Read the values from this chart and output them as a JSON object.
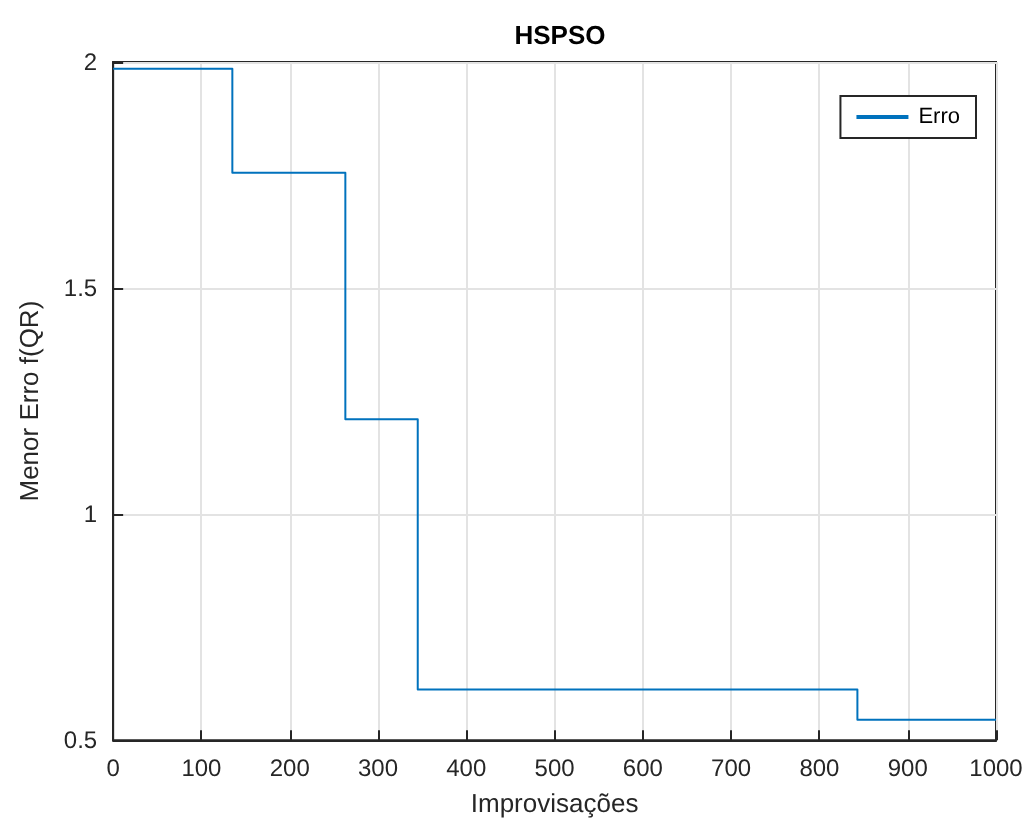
{
  "chart_data": {
    "type": "step",
    "title": "HSPSO",
    "xlabel": "Improvisações",
    "ylabel": "Menor Erro f(QR)",
    "x": [
      0,
      135,
      263,
      345,
      843,
      1000
    ],
    "series": [
      {
        "name": "Erro",
        "color": "#0072bd",
        "values": [
          1.985,
          1.755,
          1.21,
          0.612,
          0.545,
          0.545
        ]
      }
    ],
    "xlim": [
      0,
      1000
    ],
    "xticks": [
      0,
      100,
      200,
      300,
      400,
      500,
      600,
      700,
      800,
      900,
      1000
    ],
    "ylim": [
      0.5,
      2
    ],
    "yticks": [
      0.5,
      1,
      1.5,
      2
    ],
    "grid": true,
    "legend": "top right",
    "marker": "none",
    "line_style": "solid"
  }
}
